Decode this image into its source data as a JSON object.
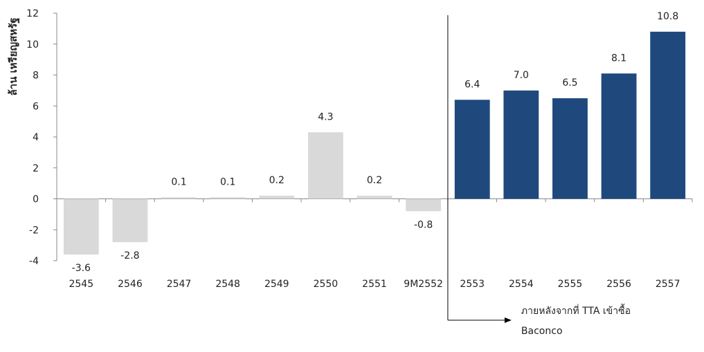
{
  "chart_data": {
    "type": "bar",
    "ylabel": "ล้าน เหรียญสหรัฐ",
    "ylim": [
      -4,
      12
    ],
    "yticks": [
      -4,
      -2,
      0,
      2,
      4,
      6,
      8,
      10,
      12
    ],
    "categories": [
      "2545",
      "2546",
      "2547",
      "2548",
      "2549",
      "2550",
      "2551",
      "9M2552",
      "2553",
      "2554",
      "2555",
      "2556",
      "2557"
    ],
    "values": [
      -3.6,
      -2.8,
      0.1,
      0.1,
      0.2,
      4.3,
      0.2,
      -0.8,
      6.4,
      7.0,
      6.5,
      8.1,
      10.8
    ],
    "value_labels": [
      "-3.6",
      "-2.8",
      "0.1",
      "0.1",
      "0.2",
      "4.3",
      "0.2",
      "-0.8",
      "6.4",
      "7.0",
      "6.5",
      "8.1",
      "10.8"
    ],
    "colors": {
      "before": "#d9d9d9",
      "after": "#1f497d"
    },
    "split_after_category": "9M2552",
    "annotation": {
      "line1": "ภายหลังจากที่ TTA เข้าซื้อ",
      "line2": "Baconco"
    },
    "grid": false,
    "legend": "none"
  }
}
